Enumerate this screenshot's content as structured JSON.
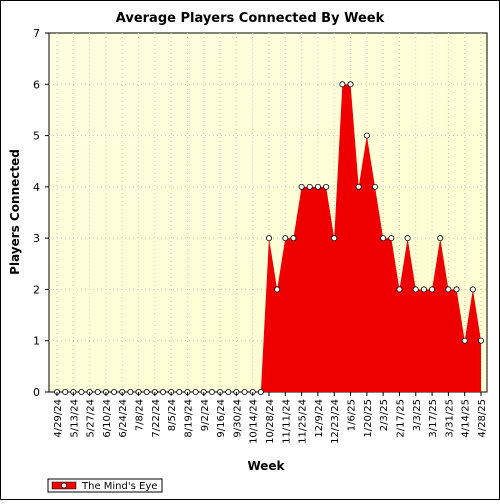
{
  "chart_data": {
    "type": "area",
    "title": "Average Players Connected By Week",
    "xlabel": "Week",
    "ylabel": "Players Connected",
    "ylim": [
      0,
      7
    ],
    "yticks": [
      0,
      1,
      2,
      3,
      4,
      5,
      6,
      7
    ],
    "grid": true,
    "legend_placement": "bottom-left",
    "colors": {
      "area": "#ee0000",
      "plot_background": "#ffffe6",
      "grid": "#c8c8c8",
      "marker_fill": "#ffffff"
    },
    "x_tick_labels": [
      "4/29/24",
      "5/13/24",
      "5/27/24",
      "6/10/24",
      "6/24/24",
      "7/8/24",
      "7/22/24",
      "8/5/24",
      "8/19/24",
      "9/2/24",
      "9/16/24",
      "9/30/24",
      "10/14/24",
      "10/28/24",
      "11/11/24",
      "11/25/24",
      "12/9/24",
      "12/23/24",
      "1/6/25",
      "1/20/25",
      "2/3/25",
      "2/17/25",
      "3/3/25",
      "3/17/25",
      "3/31/25",
      "4/14/25",
      "4/28/25"
    ],
    "series": [
      {
        "name": "The Mind's Eye",
        "values": [
          0,
          0,
          0,
          0,
          0,
          0,
          0,
          0,
          0,
          0,
          0,
          0,
          0,
          0,
          0,
          0,
          0,
          0,
          0,
          0,
          0,
          0,
          0,
          0,
          0,
          0,
          3,
          2,
          3,
          3,
          4,
          4,
          4,
          4,
          3,
          6,
          6,
          4,
          5,
          4,
          3,
          3,
          2,
          3,
          2,
          2,
          2,
          3,
          2,
          2,
          1,
          2,
          1
        ]
      }
    ]
  }
}
